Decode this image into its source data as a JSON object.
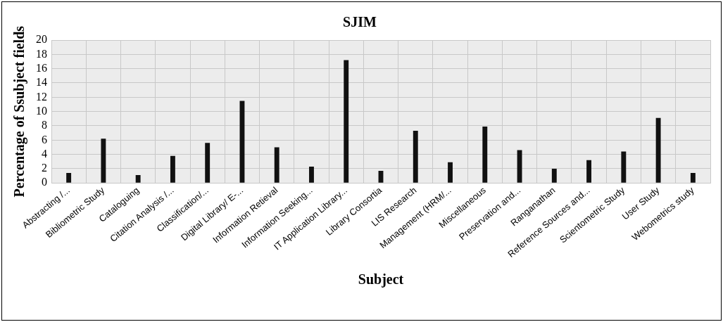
{
  "chart_data": {
    "type": "bar",
    "title": "SJIM",
    "xlabel": "Subject",
    "ylabel": "Percentage of Ssubject fields",
    "categories": [
      "Abstracting /...",
      "Bibliometric Study",
      "Cataloguing",
      "Citation Analysis /...",
      "Classification/...",
      "Digital Library/ E-...",
      "Information Retieval",
      "Information Seeking...",
      "IT Application Library...",
      "Library Consortia",
      "LIS Research",
      "Management (HRM/...",
      "Miscellaneous",
      "Preservation and...",
      "Ranganathan",
      "Reference Sources and...",
      "Scientometric Study",
      "User Study",
      "Webometrics study"
    ],
    "values": [
      1.4,
      6.2,
      1.1,
      3.8,
      5.6,
      11.5,
      5.0,
      2.3,
      17.2,
      1.7,
      7.3,
      2.9,
      7.9,
      4.6,
      2.0,
      3.2,
      4.4,
      9.1,
      1.4
    ],
    "color": "#111111",
    "ylim": [
      0,
      20
    ],
    "yticks": [
      0,
      2,
      4,
      6,
      8,
      10,
      12,
      14,
      16,
      18,
      20
    ],
    "grid": true,
    "legend": false
  }
}
